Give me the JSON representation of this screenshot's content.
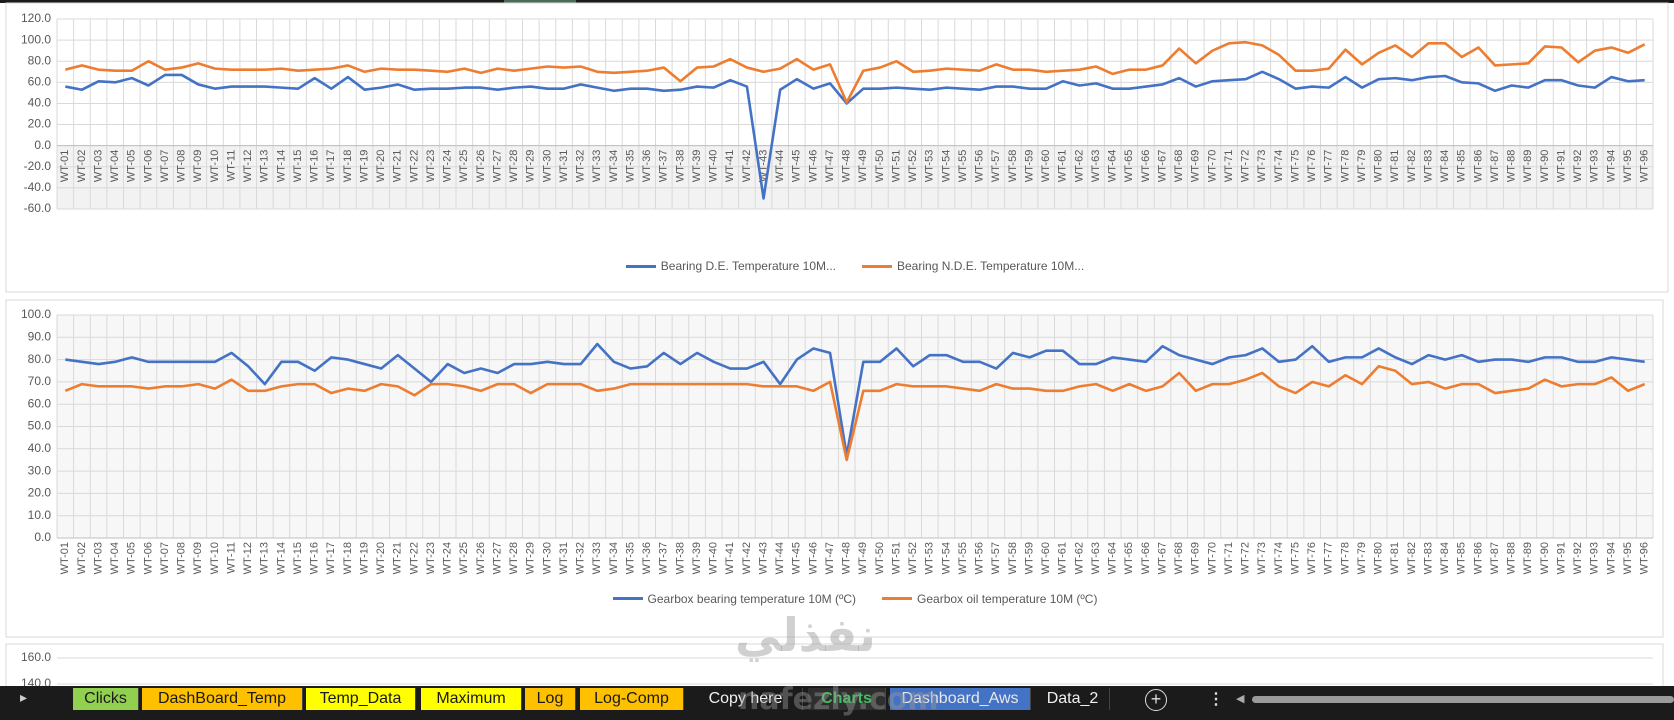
{
  "chart_data": [
    {
      "type": "line",
      "categories": [
        "WT-01",
        "WT-02",
        "WT-03",
        "WT-04",
        "WT-05",
        "WT-06",
        "WT-07",
        "WT-08",
        "WT-09",
        "WT-10",
        "WT-11",
        "WT-12",
        "WT-13",
        "WT-14",
        "WT-15",
        "WT-16",
        "WT-17",
        "WT-18",
        "WT-19",
        "WT-20",
        "WT-21",
        "WT-22",
        "WT-23",
        "WT-24",
        "WT-25",
        "WT-26",
        "WT-27",
        "WT-28",
        "WT-29",
        "WT-30",
        "WT-31",
        "WT-32",
        "WT-33",
        "WT-34",
        "WT-35",
        "WT-36",
        "WT-37",
        "WT-38",
        "WT-39",
        "WT-40",
        "WT-41",
        "WT-42",
        "WT-43",
        "WT-44",
        "WT-45",
        "WT-46",
        "WT-47",
        "WT-48",
        "WT-49",
        "WT-50",
        "WT-51",
        "WT-52",
        "WT-53",
        "WT-54",
        "WT-55",
        "WT-56",
        "WT-57",
        "WT-58",
        "WT-59",
        "WT-60",
        "WT-61",
        "WT-62",
        "WT-63",
        "WT-64",
        "WT-65",
        "WT-66",
        "WT-67",
        "WT-68",
        "WT-69",
        "WT-70",
        "WT-71",
        "WT-72",
        "WT-73",
        "WT-74",
        "WT-75",
        "WT-76",
        "WT-77",
        "WT-78",
        "WT-79",
        "WT-80",
        "WT-81",
        "WT-82",
        "WT-83",
        "WT-84",
        "WT-85",
        "WT-86",
        "WT-87",
        "WT-88",
        "WT-89",
        "WT-90",
        "WT-91",
        "WT-92",
        "WT-93",
        "WT-94",
        "WT-95",
        "WT-96"
      ],
      "series": [
        {
          "name": "Bearing D.E. Temperature 10M...",
          "color": "#4472c4",
          "values": [
            56,
            53,
            61,
            60,
            64,
            57,
            67,
            67,
            58,
            54,
            56,
            56,
            56,
            55,
            54,
            64,
            54,
            65,
            53,
            55,
            58,
            53,
            54,
            54,
            55,
            55,
            53,
            55,
            56,
            54,
            54,
            58,
            55,
            52,
            54,
            54,
            52,
            53,
            56,
            55,
            62,
            56,
            -50,
            53,
            63,
            54,
            59,
            40,
            54,
            54,
            55,
            54,
            53,
            55,
            54,
            53,
            56,
            56,
            54,
            54,
            61,
            57,
            59,
            54,
            54,
            56,
            58,
            64,
            56,
            61,
            62,
            63,
            70,
            63,
            54,
            56,
            55,
            65,
            55,
            63,
            64,
            62,
            65,
            66,
            60,
            59,
            52,
            57,
            55,
            62,
            62,
            57,
            55,
            65,
            61,
            62
          ]
        },
        {
          "name": "Bearing N.D.E. Temperature 10M...",
          "color": "#ed7d31",
          "values": [
            72,
            76,
            72,
            71,
            71,
            80,
            72,
            74,
            78,
            73,
            72,
            72,
            72,
            73,
            71,
            72,
            73,
            76,
            70,
            73,
            72,
            72,
            71,
            70,
            73,
            69,
            73,
            71,
            73,
            75,
            74,
            75,
            70,
            69,
            70,
            71,
            74,
            61,
            74,
            75,
            82,
            74,
            70,
            73,
            82,
            72,
            77,
            41,
            71,
            74,
            80,
            70,
            71,
            73,
            72,
            71,
            77,
            72,
            72,
            70,
            71,
            72,
            75,
            68,
            72,
            72,
            76,
            92,
            78,
            90,
            97,
            98,
            95,
            86,
            71,
            71,
            73,
            91,
            77,
            88,
            95,
            84,
            97,
            97,
            84,
            93,
            76,
            77,
            78,
            94,
            93,
            79,
            90,
            93,
            88,
            96
          ]
        }
      ],
      "ylim": [
        -60,
        120
      ],
      "yticks": [
        {
          "value": 120,
          "label": "120.0"
        },
        {
          "value": 100,
          "label": "100.0"
        },
        {
          "value": 80,
          "label": "80.0"
        },
        {
          "value": 60,
          "label": "60.0"
        },
        {
          "value": 40,
          "label": "40.0"
        },
        {
          "value": 20,
          "label": "20.0"
        },
        {
          "value": 0,
          "label": "0.0"
        },
        {
          "value": -20,
          "label": "-20.0"
        },
        {
          "value": -40,
          "label": "-40.0"
        },
        {
          "value": -60,
          "label": "-60.0"
        }
      ],
      "grid": true,
      "legend": "bottom"
    },
    {
      "type": "line",
      "categories": [
        "WT-01",
        "WT-02",
        "WT-03",
        "WT-04",
        "WT-05",
        "WT-06",
        "WT-07",
        "WT-08",
        "WT-09",
        "WT-10",
        "WT-11",
        "WT-12",
        "WT-13",
        "WT-14",
        "WT-15",
        "WT-16",
        "WT-17",
        "WT-18",
        "WT-19",
        "WT-20",
        "WT-21",
        "WT-22",
        "WT-23",
        "WT-24",
        "WT-25",
        "WT-26",
        "WT-27",
        "WT-28",
        "WT-29",
        "WT-30",
        "WT-31",
        "WT-32",
        "WT-33",
        "WT-34",
        "WT-35",
        "WT-36",
        "WT-37",
        "WT-38",
        "WT-39",
        "WT-40",
        "WT-41",
        "WT-42",
        "WT-43",
        "WT-44",
        "WT-45",
        "WT-46",
        "WT-47",
        "WT-48",
        "WT-49",
        "WT-50",
        "WT-51",
        "WT-52",
        "WT-53",
        "WT-54",
        "WT-55",
        "WT-56",
        "WT-57",
        "WT-58",
        "WT-59",
        "WT-60",
        "WT-61",
        "WT-62",
        "WT-63",
        "WT-64",
        "WT-65",
        "WT-66",
        "WT-67",
        "WT-68",
        "WT-69",
        "WT-70",
        "WT-71",
        "WT-72",
        "WT-73",
        "WT-74",
        "WT-75",
        "WT-76",
        "WT-77",
        "WT-78",
        "WT-79",
        "WT-80",
        "WT-81",
        "WT-82",
        "WT-83",
        "WT-84",
        "WT-85",
        "WT-86",
        "WT-87",
        "WT-88",
        "WT-89",
        "WT-90",
        "WT-91",
        "WT-92",
        "WT-93",
        "WT-94",
        "WT-95",
        "WT-96"
      ],
      "series": [
        {
          "name": "Gearbox bearing temperature 10M (ºC)",
          "color": "#4472c4",
          "values": [
            80,
            79,
            78,
            79,
            81,
            79,
            79,
            79,
            79,
            79,
            83,
            77,
            69,
            79,
            79,
            75,
            81,
            80,
            78,
            76,
            82,
            76,
            70,
            78,
            74,
            76,
            74,
            78,
            78,
            79,
            78,
            78,
            87,
            79,
            76,
            77,
            83,
            78,
            83,
            79,
            76,
            76,
            79,
            69,
            80,
            85,
            83,
            37,
            79,
            79,
            85,
            77,
            82,
            82,
            79,
            79,
            76,
            83,
            81,
            84,
            84,
            78,
            78,
            81,
            80,
            79,
            86,
            82,
            80,
            78,
            81,
            82,
            85,
            79,
            80,
            86,
            79,
            81,
            81,
            85,
            81,
            78,
            82,
            80,
            82,
            79,
            80,
            80,
            79,
            81,
            81,
            79,
            79,
            81,
            80,
            79
          ]
        },
        {
          "name": "Gearbox oil temperature 10M (ºC)",
          "color": "#ed7d31",
          "values": [
            66,
            69,
            68,
            68,
            68,
            67,
            68,
            68,
            69,
            67,
            71,
            66,
            66,
            68,
            69,
            69,
            65,
            67,
            66,
            69,
            68,
            64,
            69,
            69,
            68,
            66,
            69,
            69,
            65,
            69,
            69,
            69,
            66,
            67,
            69,
            69,
            69,
            69,
            69,
            69,
            69,
            69,
            68,
            68,
            68,
            66,
            70,
            35,
            66,
            66,
            69,
            68,
            68,
            68,
            67,
            66,
            69,
            67,
            67,
            66,
            66,
            68,
            69,
            66,
            69,
            66,
            68,
            74,
            66,
            69,
            69,
            71,
            74,
            68,
            65,
            70,
            68,
            73,
            69,
            77,
            75,
            69,
            70,
            67,
            69,
            69,
            65,
            66,
            67,
            71,
            68,
            69,
            69,
            72,
            66,
            69
          ]
        }
      ],
      "ylim": [
        0,
        100
      ],
      "yticks": [
        {
          "value": 100,
          "label": "100.0"
        },
        {
          "value": 90,
          "label": "90.0"
        },
        {
          "value": 80,
          "label": "80.0"
        },
        {
          "value": 70,
          "label": "70.0"
        },
        {
          "value": 60,
          "label": "60.0"
        },
        {
          "value": 50,
          "label": "50.0"
        },
        {
          "value": 40,
          "label": "40.0"
        },
        {
          "value": 30,
          "label": "30.0"
        },
        {
          "value": 20,
          "label": "20.0"
        },
        {
          "value": 10,
          "label": "10.0"
        },
        {
          "value": 0,
          "label": "0.0"
        }
      ],
      "grid": true,
      "legend": "bottom"
    },
    {
      "type": "line",
      "ylim": [
        140,
        160
      ],
      "yticks": [
        {
          "value": 160,
          "label": "160.0"
        },
        {
          "value": 140,
          "label": "140.0"
        }
      ],
      "grid": true
    }
  ],
  "sheet_tabs": [
    {
      "label": "Clicks",
      "color": "#92d050"
    },
    {
      "label": "DashBoard_Temp",
      "color": "#ffc000"
    },
    {
      "label": "Temp_Data",
      "color": "#ffff00"
    },
    {
      "label": "Maximum",
      "color": "#ffff00"
    },
    {
      "label": "Log",
      "color": "#ffc000"
    },
    {
      "label": "Log-Comp",
      "color": "#ffc000"
    },
    {
      "label": "Copy here",
      "color": null
    },
    {
      "label": "Charts",
      "color": null,
      "active": true
    },
    {
      "label": "Dashboard_Aws",
      "color": "#4472c4"
    },
    {
      "label": "Data_2",
      "color": null
    }
  ],
  "watermark": {
    "logo": "نفذلي",
    "site": "nafezly.com"
  }
}
